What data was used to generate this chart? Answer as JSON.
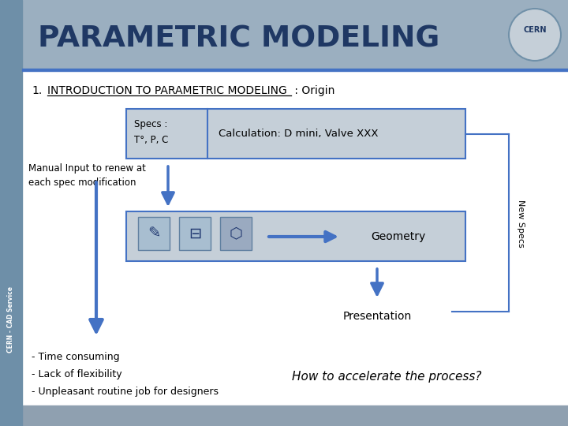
{
  "title": "PARAMETRIC MODELING",
  "title_color": "#1F3864",
  "header_bg": "#9BAFC0",
  "subtitle_num": "1.",
  "subtitle_underlined": "INTRODUCTION TO PARAMETRIC MODELING",
  "subtitle_rest": " : Origin",
  "specs_left1": "Specs :",
  "specs_left2": "T°, P, C",
  "calc_label": "Calculation: D mini, Valve XXX",
  "manual_text": "Manual Input to renew at\neach spec modification",
  "geometry_text": "Geometry",
  "presentation_text": "Presentation",
  "new_specs_text": "New Specs",
  "time_text": "- Time consuming",
  "flexibility_text": "- Lack of flexibility",
  "unpleasant_text": "- Unpleasant routine job for designers",
  "accelerate_text": "How to accelerate the process?",
  "arrow_color": "#4472C4",
  "box_fill": "#C5CFD8",
  "box_border": "#4472C4",
  "bg_color": "#FFFFFF",
  "sidebar_color": "#6E8FA8",
  "cern_bg": "#C5CFD8",
  "bottom_color": "#8FA0B0"
}
